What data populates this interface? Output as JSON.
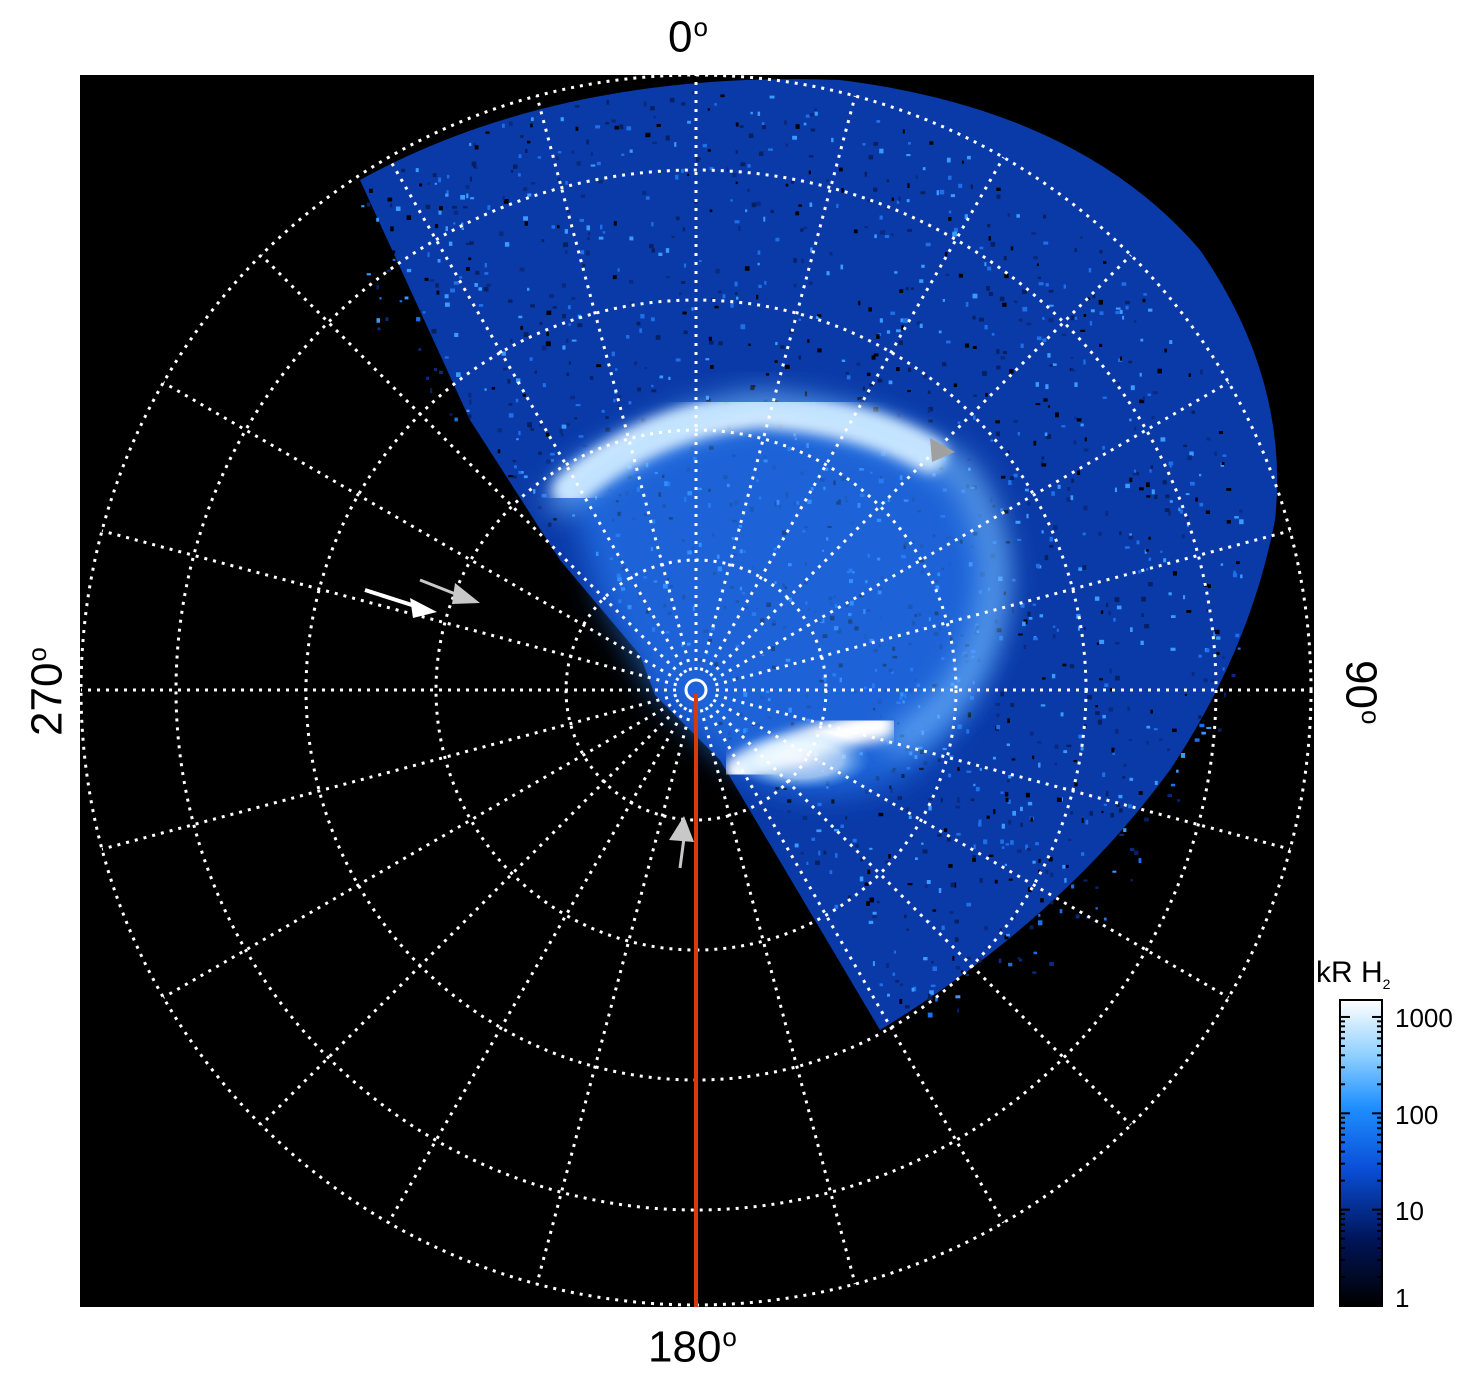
{
  "axis_labels": {
    "top": "0",
    "right": "90",
    "bottom": "180",
    "left": "270",
    "degree_symbol": "o"
  },
  "colorbar": {
    "title_main": "kR H",
    "title_sub": "2",
    "ticks": [
      "1000",
      "100",
      "10",
      "1"
    ],
    "colors": [
      "#ffffff",
      "#8fd0ff",
      "#1f8fff",
      "#0a4fd8",
      "#00155a",
      "#000000"
    ]
  },
  "colors": {
    "background": "#000000",
    "grid": "#ffffff",
    "meridian_line": "#d83a10",
    "aurora_dim": "#0a3fb0",
    "aurora_mid": "#1d7fff",
    "aurora_bright": "#ffffff"
  },
  "annotations": {
    "white_arrow": "white-arrow-icon",
    "gray_arrows": [
      "gray-arrowhead-icon",
      "gray-arrowhead-icon",
      "gray-arrowhead-icon"
    ]
  }
}
